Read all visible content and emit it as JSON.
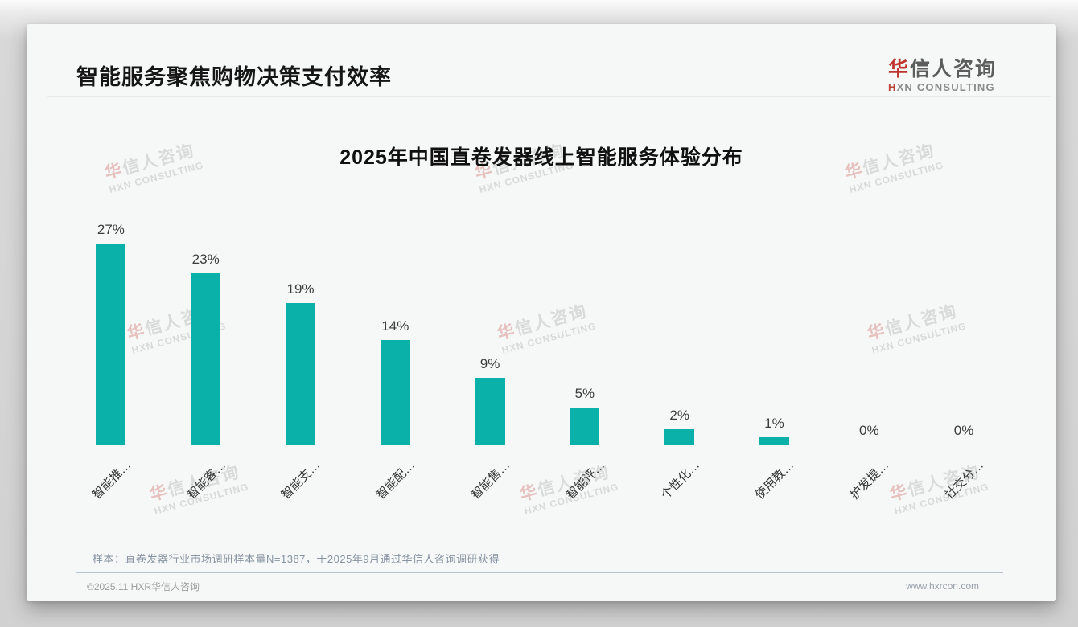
{
  "header": {
    "title": "智能服务聚焦购物决策支付效率"
  },
  "logo": {
    "cn_accent": "华",
    "cn_rest": "信人咨询",
    "en_accent": "H",
    "en_rest": "XN CONSULTING"
  },
  "watermark": {
    "line1_accent": "华",
    "line1_rest": "信人咨询",
    "line2": "HXN CONSULTING"
  },
  "note": "样本：直卷发器行业市场调研样本量N=1387，于2025年9月通过华信人咨询调研获得",
  "footer": {
    "left": "©2025.11 HXR华信人咨询",
    "right": "www.hxrcon.com"
  },
  "chart_data": {
    "type": "bar",
    "title": "2025年中国直卷发器线上智能服务体验分布",
    "categories": [
      "智能推…",
      "智能客…",
      "智能支…",
      "智能配…",
      "智能售…",
      "智能评…",
      "个性化…",
      "使用教…",
      "护发提…",
      "社交分…"
    ],
    "values": [
      27,
      23,
      19,
      14,
      9,
      5,
      2,
      1,
      0,
      0
    ],
    "value_labels": [
      "27%",
      "23%",
      "19%",
      "14%",
      "9%",
      "5%",
      "2%",
      "1%",
      "0%",
      "0%"
    ],
    "unit": "%",
    "bar_color": "#0ab1a8",
    "axis_line_color": "#c9cbcc",
    "xlabel": "",
    "ylabel": "",
    "ylim": [
      0,
      30
    ],
    "grid": false,
    "legend": null,
    "x_tick_rotation_deg": 45
  }
}
